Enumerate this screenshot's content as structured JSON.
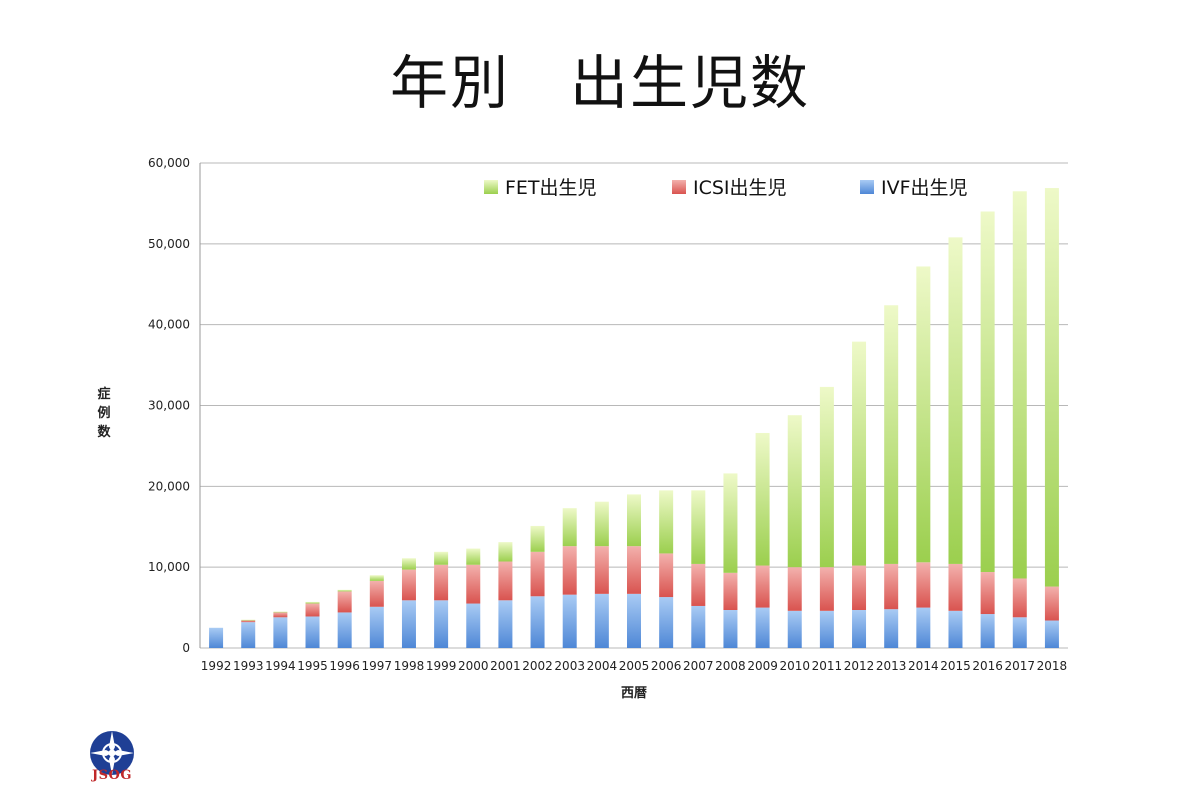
{
  "title": "年別　出生児数",
  "logo_text": "JSOG",
  "colors": {
    "fet": "#b8dc72",
    "icsi": "#e57c77",
    "ivf": "#6fa3e4"
  },
  "chart_data": {
    "type": "bar",
    "stacked": true,
    "title": "年別　出生児数",
    "xlabel": "西暦",
    "ylabel": "症例数",
    "ylim": [
      0,
      60000
    ],
    "yticks": [
      0,
      10000,
      20000,
      30000,
      40000,
      50000,
      60000
    ],
    "ytick_labels": [
      "0",
      "10,000",
      "20,000",
      "30,000",
      "40,000",
      "50,000",
      "60,000"
    ],
    "grid": true,
    "legend_position": "top-right",
    "categories": [
      "1992",
      "1993",
      "1994",
      "1995",
      "1996",
      "1997",
      "1998",
      "1999",
      "2000",
      "2001",
      "2002",
      "2003",
      "2004",
      "2005",
      "2006",
      "2007",
      "2008",
      "2009",
      "2010",
      "2011",
      "2012",
      "2013",
      "2014",
      "2015",
      "2016",
      "2017",
      "2018"
    ],
    "series": [
      {
        "name": "IVF出生児",
        "key": "ivf",
        "values": [
          2500,
          3200,
          3800,
          3900,
          4400,
          5100,
          5900,
          5900,
          5500,
          5900,
          6400,
          6600,
          6700,
          6700,
          6300,
          5200,
          4700,
          5000,
          4600,
          4600,
          4700,
          4800,
          5000,
          4600,
          4200,
          3800,
          3400
        ]
      },
      {
        "name": "ICSI出生児",
        "key": "icsi",
        "values": [
          0,
          200,
          600,
          1600,
          2600,
          3200,
          3800,
          4400,
          4800,
          4800,
          5500,
          6000,
          5900,
          5900,
          5400,
          5200,
          4600,
          5200,
          5400,
          5400,
          5500,
          5600,
          5600,
          5800,
          5200,
          4800,
          4200
        ]
      },
      {
        "name": "FET出生児",
        "key": "fet",
        "values": [
          0,
          100,
          100,
          200,
          200,
          700,
          1400,
          1600,
          2000,
          2400,
          3200,
          4700,
          5500,
          6400,
          7800,
          9100,
          12300,
          16400,
          18800,
          22300,
          27700,
          32000,
          36600,
          40400,
          44600,
          47900,
          49300
        ]
      }
    ]
  }
}
